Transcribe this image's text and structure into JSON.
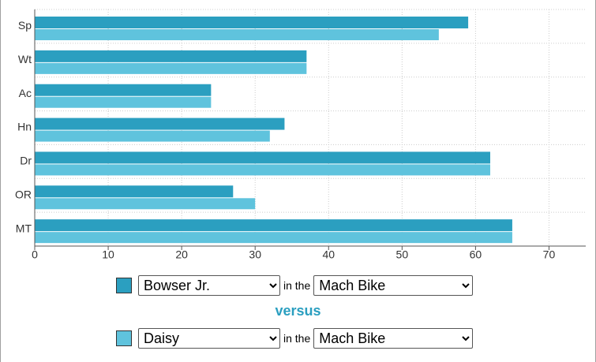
{
  "chart_data": {
    "type": "bar",
    "orientation": "horizontal",
    "categories": [
      "Sp",
      "Wt",
      "Ac",
      "Hn",
      "Dr",
      "OR",
      "MT"
    ],
    "series": [
      {
        "name": "Bowser Jr.",
        "color": "#2b9fc0",
        "values": [
          59,
          37,
          24,
          34,
          62,
          27,
          65
        ]
      },
      {
        "name": "Daisy",
        "color": "#5fc3dd",
        "values": [
          55,
          37,
          24,
          32,
          62,
          30,
          65
        ]
      }
    ],
    "xlim": [
      0,
      75
    ],
    "xticks": [
      0,
      10,
      20,
      30,
      40,
      50,
      60,
      70
    ],
    "grid": true
  },
  "form": {
    "connector": "in the",
    "versus": "versus",
    "vehicles": [
      "Mach Bike",
      "Mach Bike"
    ]
  }
}
